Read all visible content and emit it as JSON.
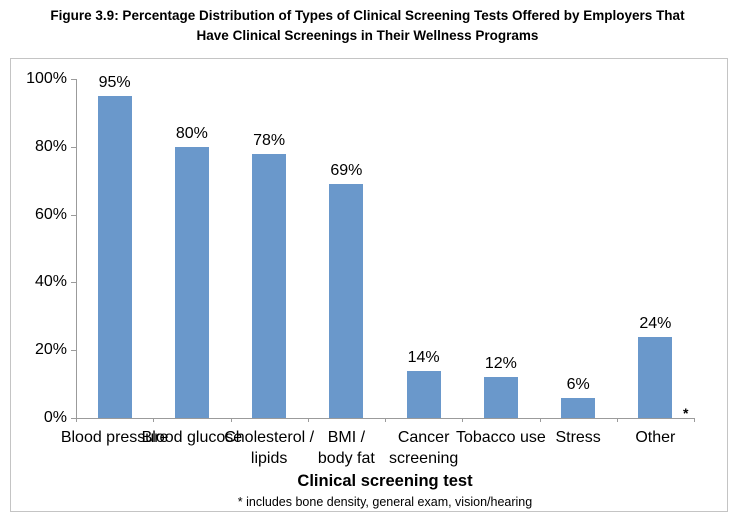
{
  "figure": {
    "title_lines": [
      "Figure 3.9: Percentage Distribution of Types of Clinical Screening Tests Offered by Employers That",
      "Have Clinical Screenings in Their Wellness Programs"
    ]
  },
  "chart_data": {
    "type": "bar",
    "title": "Figure 3.9: Percentage Distribution of Types of Clinical Screening Tests Offered by Employers That Have Clinical Screenings in Their Wellness Programs",
    "categories": [
      "Blood pressure",
      "Blood glucose",
      "Cholesterol / lipids",
      "BMI / body fat",
      "Cancer screening",
      "Tobacco use",
      "Stress",
      "Other"
    ],
    "category_label_lines": [
      [
        "Blood pressure"
      ],
      [
        "Blood glucose"
      ],
      [
        "Cholesterol /",
        "lipids"
      ],
      [
        "BMI /",
        "body fat"
      ],
      [
        "Cancer",
        "screening"
      ],
      [
        "Tobacco use"
      ],
      [
        "Stress"
      ],
      [
        "Other"
      ]
    ],
    "values": [
      95,
      80,
      78,
      69,
      14,
      12,
      6,
      24
    ],
    "data_labels": [
      "95%",
      "80%",
      "78%",
      "69%",
      "14%",
      "12%",
      "6%",
      "24%"
    ],
    "y_ticks": [
      "100%",
      "80%",
      "60%",
      "40%",
      "20%",
      "0%"
    ],
    "ylim": [
      0,
      100
    ],
    "xlabel": "Clinical screening test",
    "ylabel": "",
    "footnote": "* includes bone density, general exam, vision/hearing",
    "axis_note_marker": "*",
    "grid": false,
    "legend": null,
    "bar_color": "#6a98cb",
    "axis_color": "#9b9b9b",
    "border_color": "#c4c4c4",
    "label_color": "#000000"
  }
}
